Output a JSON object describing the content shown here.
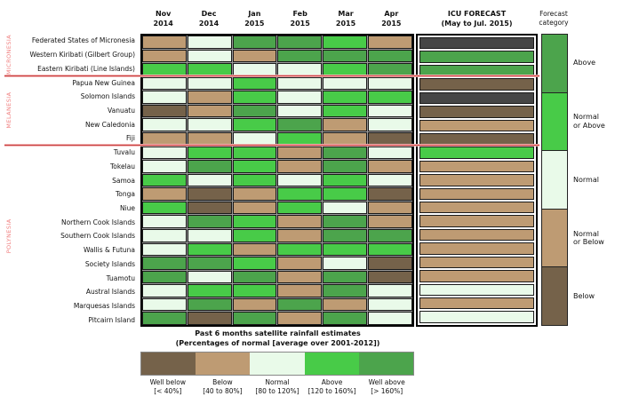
{
  "header": {
    "icu_line1": "ICU FORECAST",
    "icu_line2": "(May to Jul. 2015)",
    "forecast_category_line1": "Forecast",
    "forecast_category_line2": "category"
  },
  "regions": [
    {
      "name": "MICRONESIA",
      "start": 0,
      "end": 3
    },
    {
      "name": "MELANESIA",
      "start": 3,
      "end": 8
    },
    {
      "name": "POLYNESIA",
      "start": 8,
      "end": 21
    }
  ],
  "colors": {
    "scale": {
      "well_below": "#75624A",
      "below": "#BE9B73",
      "normal": "#E9FAE9",
      "above": "#48CB48",
      "well_above": "#4CA44C"
    },
    "forecast": {
      "above": "#4CA44C",
      "normal_or_above": "#48CB48",
      "normal": "#E9FAE9",
      "normal_or_below": "#BE9B73",
      "below": "#75624A",
      "no_forecast": "#464646"
    },
    "region_label": "#F08080",
    "separator_core": "#C94040",
    "separator_glow": "#F2B6B6"
  },
  "chart_data": {
    "type": "heatmap",
    "title": "Past 6 months satellite rainfall estimates",
    "subtitle": "(Percentages of normal [average over 2001-2012])",
    "columns": [
      "Nov 2014",
      "Dec 2014",
      "Jan 2015",
      "Feb 2015",
      "Mar 2015",
      "Apr 2015"
    ],
    "forecast_column": "ICU FORECAST (May to Jul. 2015)",
    "rows": [
      {
        "island": "Federated States of Micronesia",
        "region": "MICRONESIA",
        "values": [
          "below",
          "normal",
          "well_above",
          "well_above",
          "above",
          "below"
        ],
        "icu": "no_forecast"
      },
      {
        "island": "Western Kiribati (Gilbert Group)",
        "region": "MICRONESIA",
        "values": [
          "below",
          "normal",
          "below",
          "well_above",
          "well_above",
          "well_above"
        ],
        "icu": "above"
      },
      {
        "island": "Eastern Kiribati (Line Islands)",
        "region": "MICRONESIA",
        "values": [
          "above",
          "above",
          "normal",
          "normal",
          "above",
          "well_above"
        ],
        "icu": "above"
      },
      {
        "island": "Papua New Guinea",
        "region": "MELANESIA",
        "values": [
          "normal",
          "normal",
          "above",
          "normal",
          "normal",
          "normal"
        ],
        "icu": "below"
      },
      {
        "island": "Solomon Islands",
        "region": "MELANESIA",
        "values": [
          "normal",
          "below",
          "above",
          "normal",
          "above",
          "above"
        ],
        "icu": "no_forecast"
      },
      {
        "island": "Vanuatu",
        "region": "MELANESIA",
        "values": [
          "well_below",
          "below",
          "well_above",
          "normal",
          "above",
          "normal"
        ],
        "icu": "below"
      },
      {
        "island": "New Caledonia",
        "region": "MELANESIA",
        "values": [
          "normal",
          "normal",
          "above",
          "well_above",
          "below",
          "normal"
        ],
        "icu": "normal_or_below"
      },
      {
        "island": "Fiji",
        "region": "MELANESIA",
        "values": [
          "below",
          "below",
          "normal",
          "above",
          "below",
          "well_below"
        ],
        "icu": "below"
      },
      {
        "island": "Tuvalu",
        "region": "POLYNESIA",
        "values": [
          "normal",
          "above",
          "above",
          "below",
          "well_above",
          "normal"
        ],
        "icu": "normal_or_above"
      },
      {
        "island": "Tokelau",
        "region": "POLYNESIA",
        "values": [
          "normal",
          "well_above",
          "above",
          "below",
          "well_above",
          "below"
        ],
        "icu": "normal_or_below"
      },
      {
        "island": "Samoa",
        "region": "POLYNESIA",
        "values": [
          "above",
          "normal",
          "above",
          "normal",
          "above",
          "normal"
        ],
        "icu": "normal_or_below"
      },
      {
        "island": "Tonga",
        "region": "POLYNESIA",
        "values": [
          "below",
          "well_below",
          "below",
          "above",
          "above",
          "well_below"
        ],
        "icu": "normal_or_below"
      },
      {
        "island": "Niue",
        "region": "POLYNESIA",
        "values": [
          "above",
          "well_below",
          "below",
          "above",
          "normal",
          "below"
        ],
        "icu": "normal_or_below"
      },
      {
        "island": "Northern Cook Islands",
        "region": "POLYNESIA",
        "values": [
          "normal",
          "well_above",
          "above",
          "below",
          "well_above",
          "below"
        ],
        "icu": "normal_or_below"
      },
      {
        "island": "Southern Cook Islands",
        "region": "POLYNESIA",
        "values": [
          "normal",
          "normal",
          "above",
          "below",
          "well_above",
          "well_above"
        ],
        "icu": "normal_or_below"
      },
      {
        "island": "Wallis & Futuna",
        "region": "POLYNESIA",
        "values": [
          "normal",
          "above",
          "below",
          "above",
          "above",
          "above"
        ],
        "icu": "normal_or_below"
      },
      {
        "island": "Society Islands",
        "region": "POLYNESIA",
        "values": [
          "well_above",
          "well_above",
          "above",
          "below",
          "normal",
          "well_below"
        ],
        "icu": "normal_or_below"
      },
      {
        "island": "Tuamotu",
        "region": "POLYNESIA",
        "values": [
          "well_above",
          "normal",
          "well_above",
          "below",
          "well_above",
          "well_below"
        ],
        "icu": "normal_or_below"
      },
      {
        "island": "Austral Islands",
        "region": "POLYNESIA",
        "values": [
          "normal",
          "above",
          "above",
          "below",
          "well_above",
          "normal"
        ],
        "icu": "normal"
      },
      {
        "island": "Marquesas Islands",
        "region": "POLYNESIA",
        "values": [
          "normal",
          "well_above",
          "below",
          "well_above",
          "below",
          "normal"
        ],
        "icu": "normal_or_below"
      },
      {
        "island": "Pitcairn Island",
        "region": "POLYNESIA",
        "values": [
          "well_above",
          "well_below",
          "well_above",
          "below",
          "well_above",
          "normal"
        ],
        "icu": "normal"
      }
    ],
    "value_scale": [
      {
        "key": "well_below",
        "label": "Well below",
        "range": "[< 40%]"
      },
      {
        "key": "below",
        "label": "Below",
        "range": "[40 to 80%]"
      },
      {
        "key": "normal",
        "label": "Normal",
        "range": "[80 to 120%]"
      },
      {
        "key": "above",
        "label": "Above",
        "range": "[120 to 160%]"
      },
      {
        "key": "well_above",
        "label": "Well above",
        "range": "[> 160%]"
      }
    ],
    "forecast_categories": [
      {
        "key": "above",
        "label": "Above"
      },
      {
        "key": "normal_or_above",
        "label": "Normal\nor Above"
      },
      {
        "key": "normal",
        "label": "Normal"
      },
      {
        "key": "normal_or_below",
        "label": "Normal\nor Below"
      },
      {
        "key": "below",
        "label": "Below"
      }
    ]
  }
}
